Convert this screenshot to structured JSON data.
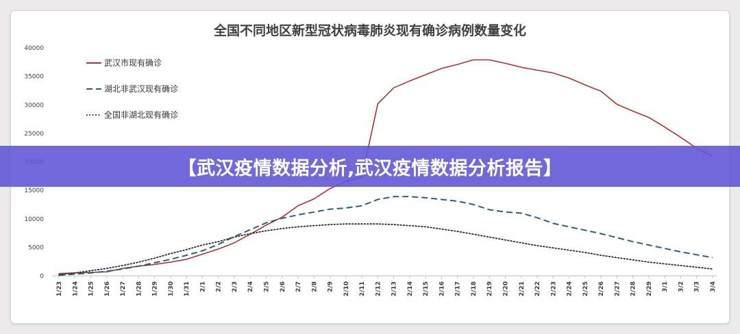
{
  "banner": {
    "text": "【武汉疫情数据分析,武汉疫情数据分析报告】"
  },
  "chart_data": {
    "type": "line",
    "title": "全国不同地区新型冠状病毒肺炎现有确诊病例数量变化",
    "xlabel": "",
    "ylabel": "",
    "ylim": [
      0,
      40000
    ],
    "yticks": [
      0,
      5000,
      10000,
      15000,
      20000,
      25000,
      30000,
      35000,
      40000
    ],
    "grid": false,
    "legend": "top-left",
    "x": [
      "1/23",
      "1/24",
      "1/25",
      "1/26",
      "1/27",
      "1/28",
      "1/29",
      "1/30",
      "1/31",
      "2/1",
      "2/2",
      "2/3",
      "2/4",
      "2/5",
      "2/6",
      "2/7",
      "2/8",
      "2/9",
      "2/10",
      "2/11",
      "2/12",
      "2/13",
      "2/14",
      "2/15",
      "2/16",
      "2/17",
      "2/18",
      "2/19",
      "2/20",
      "2/21",
      "2/22",
      "2/23",
      "2/24",
      "2/25",
      "2/26",
      "2/27",
      "2/28",
      "2/29",
      "3/1",
      "3/2",
      "3/3",
      "3/4"
    ],
    "series": [
      {
        "name": "武汉市现有确诊",
        "color": "#a93232",
        "dash": "solid",
        "values": [
          400,
          500,
          600,
          700,
          1300,
          1700,
          2000,
          2400,
          2900,
          3800,
          4700,
          5800,
          7300,
          8900,
          10300,
          12300,
          13500,
          15300,
          16600,
          17300,
          30200,
          33000,
          34200,
          35300,
          36400,
          37100,
          37900,
          37900,
          37300,
          36600,
          36100,
          35600,
          34700,
          33500,
          32400,
          30100,
          28900,
          27800,
          26100,
          24300,
          22400,
          21000
        ]
      },
      {
        "name": "湖北非武汉现有确诊",
        "color": "#2c5f75",
        "dash": "dashed",
        "values": [
          100,
          300,
          500,
          800,
          1200,
          1700,
          2300,
          2900,
          3600,
          4400,
          5500,
          6900,
          8100,
          9300,
          10100,
          10700,
          11200,
          11700,
          11900,
          12300,
          13400,
          13900,
          13900,
          13700,
          13400,
          13100,
          12500,
          11600,
          11200,
          11000,
          10200,
          9200,
          8600,
          8000,
          7400,
          6700,
          6000,
          5400,
          4800,
          4200,
          3700,
          3200
        ]
      },
      {
        "name": "全国非湖北现有确诊",
        "color": "#2a2a2a",
        "dash": "dotted",
        "values": [
          200,
          500,
          900,
          1300,
          1800,
          2400,
          3100,
          3900,
          4600,
          5400,
          6000,
          6800,
          7400,
          7900,
          8300,
          8600,
          8800,
          9000,
          9100,
          9100,
          9100,
          9000,
          8800,
          8600,
          8200,
          7800,
          7300,
          6800,
          6300,
          5800,
          5300,
          4900,
          4500,
          4100,
          3600,
          3200,
          2800,
          2400,
          2100,
          1800,
          1500,
          1200
        ]
      }
    ]
  }
}
